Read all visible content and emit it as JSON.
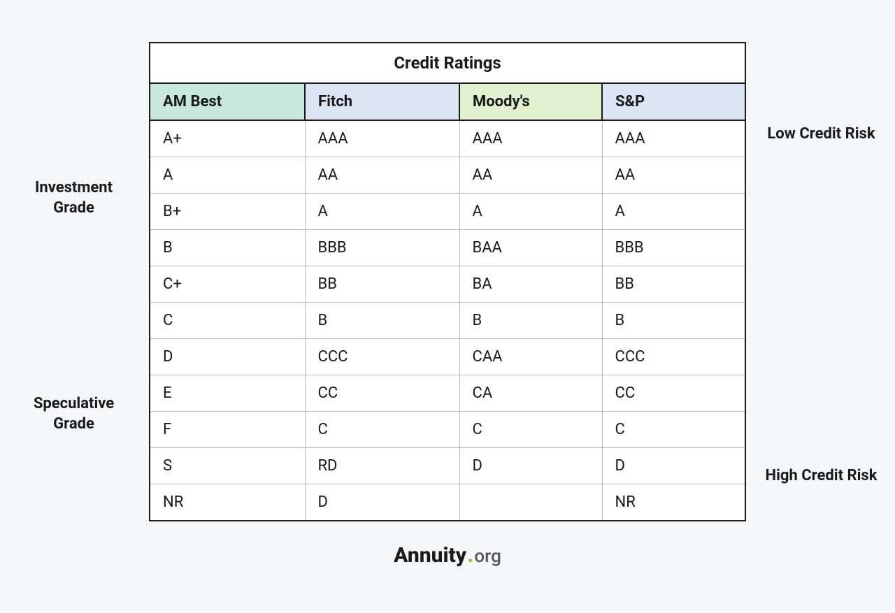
{
  "table": {
    "title": "Credit Ratings",
    "columns": [
      {
        "label": "AM Best",
        "bg": "#c8e8dd"
      },
      {
        "label": "Fitch",
        "bg": "#dde5f5"
      },
      {
        "label": "Moody's",
        "bg": "#e2f0cf"
      },
      {
        "label": "S&P",
        "bg": "#dde5f5"
      }
    ],
    "rows": [
      [
        "A+",
        "AAA",
        "AAA",
        "AAA"
      ],
      [
        "A",
        "AA",
        "AA",
        "AA"
      ],
      [
        "B+",
        "A",
        "A",
        "A"
      ],
      [
        "B",
        "BBB",
        "BAA",
        "BBB"
      ],
      [
        "C+",
        "BB",
        "BA",
        "BB"
      ],
      [
        "C",
        "B",
        "B",
        "B"
      ],
      [
        "D",
        "CCC",
        "CAA",
        "CCC"
      ],
      [
        "E",
        "CC",
        "CA",
        "CC"
      ],
      [
        "F",
        "C",
        "C",
        "C"
      ],
      [
        "S",
        "RD",
        "D",
        "D"
      ],
      [
        "NR",
        "D",
        "",
        "NR"
      ]
    ]
  },
  "left_labels": {
    "investment": "Investment Grade",
    "speculative": "Speculative Grade"
  },
  "right_labels": {
    "low": "Low Credit Risk",
    "high": "High Credit Risk"
  },
  "logo": {
    "brand": "Annuity",
    "dot": ".",
    "suffix": "org"
  }
}
